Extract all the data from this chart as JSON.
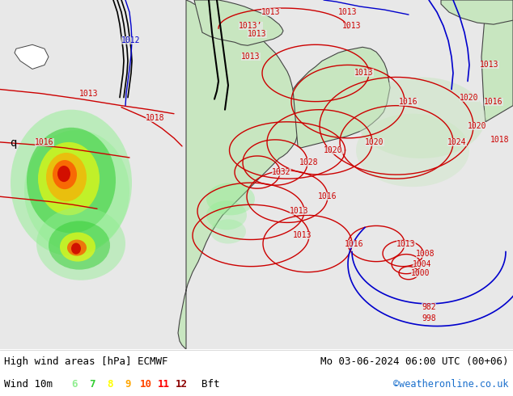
{
  "title_left": "High wind areas [hPa] ECMWF",
  "title_right": "Mo 03-06-2024 06:00 UTC (00+06)",
  "label_wind": "Wind 10m",
  "legend_values": [
    "6",
    "7",
    "8",
    "9",
    "10",
    "11",
    "12"
  ],
  "legend_colors": [
    "#90ee90",
    "#32cd32",
    "#ffff00",
    "#ffa500",
    "#ff4500",
    "#ff0000",
    "#8b0000"
  ],
  "legend_suffix": "Bft",
  "copyright": "©weatheronline.co.uk",
  "copyright_color": "#1a6fcc",
  "bg_map_color": "#f0f0f0",
  "ocean_color": "#e8e8e8",
  "land_color": "#c8e6c0",
  "text_color": "#000000",
  "figsize": [
    6.34,
    4.9
  ],
  "dpi": 100,
  "bottom_bar_height": 0.118,
  "bottom_bg": "#ffffff",
  "isobar_red": "#cc0000",
  "isobar_blue": "#0000cc",
  "isobar_black": "#000000",
  "contour_linewidth": 1.0
}
